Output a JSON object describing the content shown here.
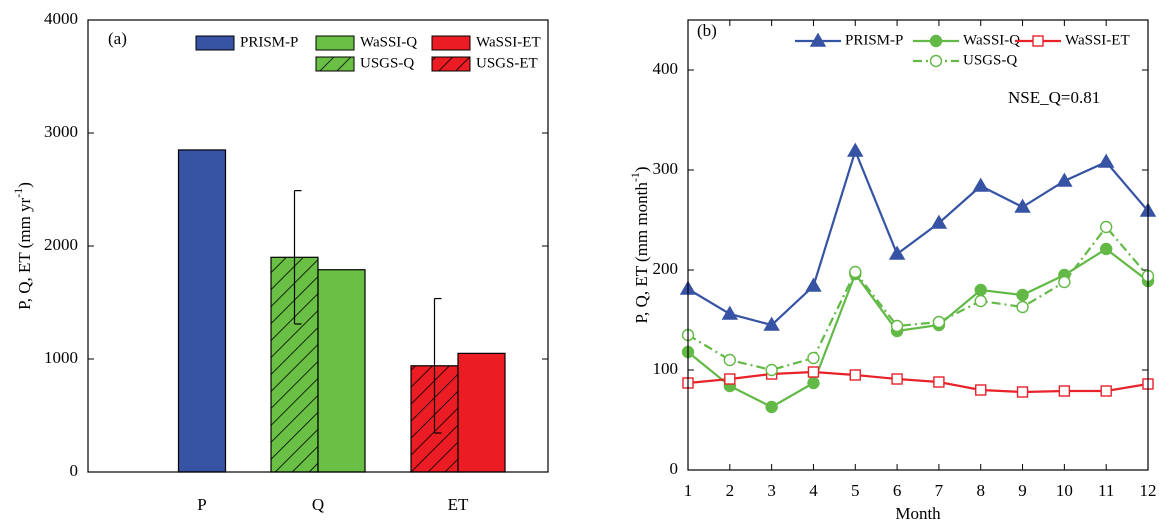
{
  "chart_data": [
    {
      "type": "bar",
      "panel_label": "(a)",
      "ylabel": {
        "text": "P, Q, ET (mm yr",
        "sup": "-1",
        "tail": ")"
      },
      "categories": [
        "P",
        "Q",
        "ET"
      ],
      "ylim": [
        0,
        4000
      ],
      "yticks": [
        0,
        1000,
        2000,
        3000,
        4000
      ],
      "series": [
        {
          "name": "PRISM-P",
          "color": "#3653a4",
          "hatch": false,
          "values": [
            2850,
            null,
            null
          ]
        },
        {
          "name": "USGS-Q",
          "color": "#6abf45",
          "hatch": true,
          "values": [
            null,
            1900,
            null
          ],
          "errors": [
            null,
            590,
            null
          ]
        },
        {
          "name": "WaSSI-Q",
          "color": "#6abf45",
          "hatch": false,
          "values": [
            null,
            1790,
            null
          ]
        },
        {
          "name": "USGS-ET",
          "color": "#ec1c24",
          "hatch": true,
          "values": [
            null,
            null,
            940
          ],
          "errors": [
            null,
            null,
            595
          ]
        },
        {
          "name": "WaSSI-ET",
          "color": "#ec1c24",
          "hatch": false,
          "values": [
            null,
            null,
            1050
          ]
        }
      ]
    },
    {
      "type": "line",
      "panel_label": "(b)",
      "annotation": "NSE_Q=0.81",
      "xlabel": "Month",
      "ylabel": {
        "text": "P, Q, ET (mm month",
        "sup": "-1",
        "tail": ")"
      },
      "x": [
        1,
        2,
        3,
        4,
        5,
        6,
        7,
        8,
        9,
        10,
        11,
        12
      ],
      "xlim": [
        1,
        12
      ],
      "xticks": [
        1,
        2,
        3,
        4,
        5,
        6,
        7,
        8,
        9,
        10,
        11,
        12
      ],
      "ylim": [
        0,
        450
      ],
      "yticks": [
        0,
        100,
        200,
        300,
        400
      ],
      "series": [
        {
          "name": "PRISM-P",
          "color": "#3653a4",
          "marker": "triangle",
          "marker_fill": true,
          "dash": false,
          "values": [
            181,
            156,
            145,
            184,
            319,
            216,
            247,
            284,
            263,
            289,
            308,
            259
          ]
        },
        {
          "name": "WaSSI-Q",
          "color": "#62b946",
          "marker": "circle",
          "marker_fill": true,
          "dash": false,
          "values": [
            118,
            84,
            63,
            87,
            196,
            139,
            145,
            180,
            175,
            195,
            221,
            189
          ]
        },
        {
          "name": "WaSSI-ET",
          "color": "#e8222a",
          "marker": "square",
          "marker_fill": false,
          "dash": false,
          "values": [
            87,
            91,
            96,
            98,
            95,
            91,
            88,
            80,
            78,
            79,
            79,
            86
          ]
        },
        {
          "name": "USGS-Q",
          "color": "#62b946",
          "marker": "circle",
          "marker_fill": false,
          "dash": true,
          "values": [
            135,
            110,
            100,
            112,
            198,
            144,
            148,
            169,
            163,
            188,
            243,
            194
          ]
        }
      ]
    }
  ]
}
